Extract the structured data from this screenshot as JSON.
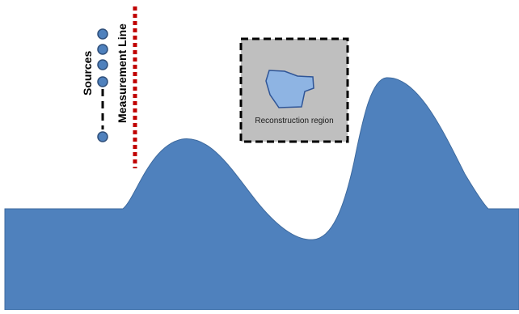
{
  "labels": {
    "sources": "Sources",
    "measurement_line": "Measurement Line",
    "reconstruction_region": "Reconstruction region"
  },
  "colors": {
    "terrain_fill": "#4f81bd",
    "terrain_stroke": "#3e6a9e",
    "source_fill": "#4f81bd",
    "source_stroke": "#2f4f7a",
    "measurement_line": "#c00000",
    "region_fill": "#bfbfbf",
    "region_border": "#000000",
    "anomaly_fill": "#8eb4e3",
    "anomaly_stroke": "#2f5597"
  },
  "icons": {
    "source": "circle",
    "ellipsis": "dashed-vertical-line",
    "anomaly": "irregular-polygon"
  }
}
